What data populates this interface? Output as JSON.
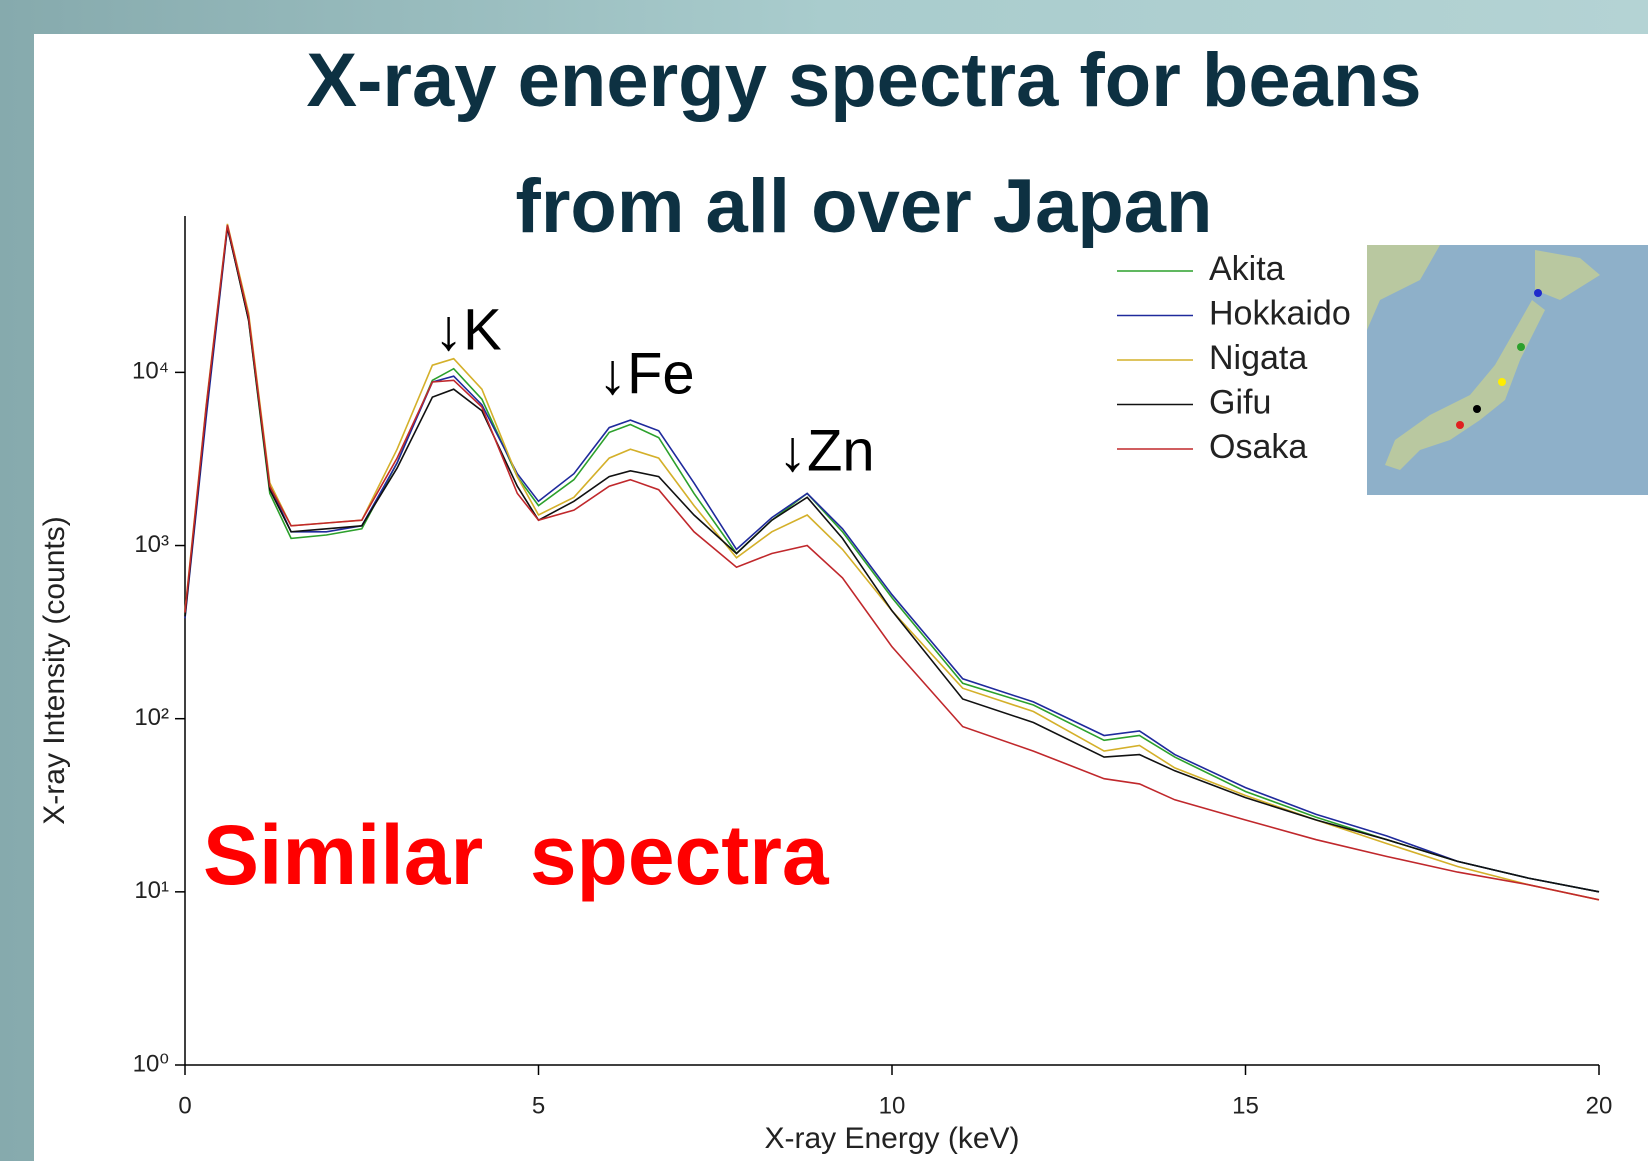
{
  "chart_data": {
    "type": "line",
    "title": [
      "X-ray energy spectra for beans",
      "from all over Japan"
    ],
    "xlabel": "X-ray Energy (keV)",
    "ylabel": "X-ray Intensity (counts)",
    "annotations": [
      "↓K",
      "↓Fe",
      "↓Zn",
      "Similar  spectra"
    ],
    "xlim": [
      0,
      20
    ],
    "xticks": [
      0,
      5,
      10,
      15,
      20
    ],
    "ylim": [
      1,
      80000
    ],
    "yscale": "log",
    "yticks": [
      {
        "value": 1,
        "label": "10⁰"
      },
      {
        "value": 10,
        "label": "10¹"
      },
      {
        "value": 100,
        "label": "10²"
      },
      {
        "value": 1000,
        "label": "10³"
      },
      {
        "value": 10000,
        "label": "10⁴"
      }
    ],
    "legend": "upper right",
    "x": [
      0,
      0.3,
      0.6,
      0.9,
      1.2,
      1.5,
      2,
      2.5,
      3,
      3.5,
      3.8,
      4.2,
      4.7,
      5,
      5.5,
      6,
      6.3,
      6.7,
      7.2,
      7.8,
      8.3,
      8.8,
      9.3,
      10,
      11,
      12,
      13,
      13.5,
      14,
      15,
      16,
      17,
      18,
      19,
      20
    ],
    "series": [
      {
        "name": "Akita",
        "color": "#2ca02c",
        "values": [
          400,
          6000,
          70000,
          20000,
          2000,
          1100,
          1150,
          1250,
          3000,
          9000,
          10500,
          7000,
          2500,
          1700,
          2400,
          4500,
          5000,
          4200,
          2000,
          900,
          1400,
          2000,
          1200,
          500,
          160,
          120,
          75,
          80,
          60,
          38,
          27,
          20,
          15,
          12,
          10
        ]
      },
      {
        "name": "Hokkaido",
        "color": "#1f2a9c",
        "values": [
          380,
          5500,
          68000,
          21000,
          2200,
          1200,
          1200,
          1300,
          3000,
          8800,
          9500,
          6500,
          2600,
          1800,
          2600,
          4800,
          5300,
          4600,
          2300,
          950,
          1450,
          2000,
          1250,
          520,
          170,
          125,
          80,
          85,
          62,
          40,
          28,
          21,
          15,
          12,
          10
        ]
      },
      {
        "name": "Nigata",
        "color": "#d4b02a",
        "values": [
          420,
          6500,
          72000,
          22000,
          2300,
          1300,
          1350,
          1400,
          3600,
          11000,
          12000,
          8000,
          2500,
          1500,
          1900,
          3200,
          3600,
          3200,
          1700,
          850,
          1200,
          1500,
          950,
          420,
          150,
          110,
          65,
          70,
          52,
          36,
          26,
          19,
          14,
          11,
          9
        ]
      },
      {
        "name": "Gifu",
        "color": "#111111",
        "values": [
          390,
          6200,
          69000,
          20000,
          2100,
          1200,
          1250,
          1300,
          2800,
          7200,
          8000,
          6000,
          2200,
          1400,
          1800,
          2500,
          2700,
          2500,
          1500,
          900,
          1400,
          1900,
          1100,
          420,
          130,
          95,
          60,
          62,
          50,
          35,
          26,
          20,
          15,
          12,
          10
        ]
      },
      {
        "name": "Osaka",
        "color": "#c0282c",
        "values": [
          410,
          6300,
          71000,
          21000,
          2200,
          1300,
          1350,
          1400,
          3200,
          8800,
          9000,
          6300,
          2000,
          1400,
          1600,
          2200,
          2400,
          2100,
          1200,
          750,
          900,
          1000,
          650,
          260,
          90,
          65,
          45,
          42,
          34,
          26,
          20,
          16,
          13,
          11,
          9
        ]
      }
    ]
  }
}
